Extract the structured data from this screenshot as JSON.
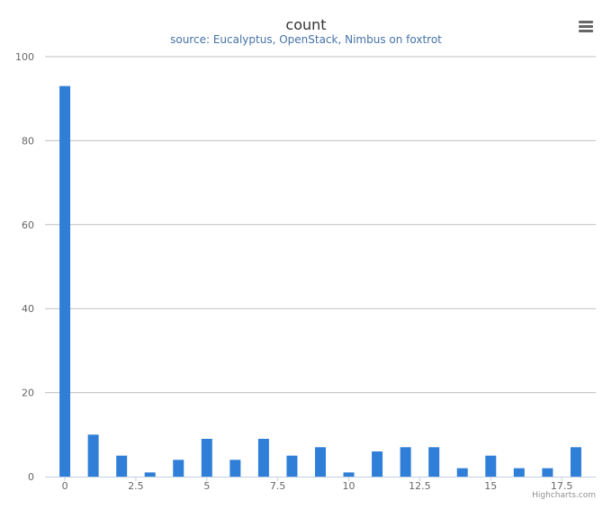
{
  "chart_data": {
    "type": "bar",
    "title": "count",
    "subtitle": "source: Eucalyptus, OpenStack, Nimbus on foxtrot",
    "xlabel": "",
    "ylabel": "",
    "x": [
      0,
      1,
      2,
      3,
      4,
      5,
      6,
      7,
      8,
      9,
      10,
      11,
      12,
      13,
      14,
      15,
      16,
      17,
      18
    ],
    "values": [
      93,
      10,
      5,
      1,
      4,
      9,
      4,
      9,
      5,
      7,
      1,
      6,
      7,
      7,
      2,
      5,
      2,
      2,
      7
    ],
    "xlim": [
      -0.7,
      18.7
    ],
    "ylim": [
      0,
      100
    ],
    "x_ticks": [
      0,
      2.5,
      5,
      7.5,
      10,
      12.5,
      15,
      17.5
    ],
    "x_tick_labels": [
      "0",
      "2.5",
      "5",
      "7.5",
      "10",
      "12.5",
      "15",
      "17.5"
    ],
    "y_ticks": [
      0,
      20,
      40,
      60,
      80,
      100
    ],
    "y_tick_labels": [
      "0",
      "20",
      "40",
      "60",
      "80",
      "100"
    ],
    "grid": true,
    "bar_color": "#2F7ED8",
    "credits": "Highcharts.com",
    "menu_icon": "hamburger-menu-icon"
  }
}
